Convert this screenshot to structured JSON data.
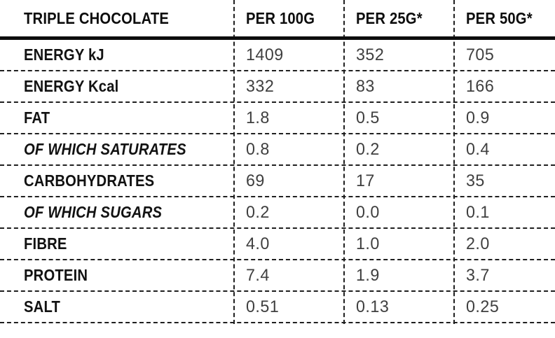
{
  "colors": {
    "background": "#ffffff",
    "label_text": "#121212",
    "value_text": "#3f3f3f",
    "solid_rule": "#0d0d0d",
    "dashed_line": "#1f1f1f"
  },
  "table": {
    "title": "TRIPLE CHOCOLATE",
    "columns": [
      "PER 100G",
      "PER 25G*",
      "PER 50G*"
    ],
    "rows": [
      {
        "label": "ENERGY kJ",
        "italic": false,
        "values": [
          "1409",
          "352",
          "705"
        ]
      },
      {
        "label": "ENERGY Kcal",
        "italic": false,
        "values": [
          "332",
          "83",
          "166"
        ]
      },
      {
        "label": "FAT",
        "italic": false,
        "values": [
          "1.8",
          "0.5",
          "0.9"
        ]
      },
      {
        "label": "OF WHICH SATURATES",
        "italic": true,
        "values": [
          "0.8",
          "0.2",
          "0.4"
        ]
      },
      {
        "label": "CARBOHYDRATES",
        "italic": false,
        "values": [
          "69",
          "17",
          "35"
        ]
      },
      {
        "label": "OF WHICH SUGARS",
        "italic": true,
        "values": [
          "0.2",
          "0.0",
          "0.1"
        ]
      },
      {
        "label": "FIBRE",
        "italic": false,
        "values": [
          "4.0",
          "1.0",
          "2.0"
        ]
      },
      {
        "label": "PROTEIN",
        "italic": false,
        "values": [
          "7.4",
          "1.9",
          "3.7"
        ]
      },
      {
        "label": "SALT",
        "italic": false,
        "values": [
          "0.51",
          "0.13",
          "0.25"
        ]
      }
    ]
  }
}
